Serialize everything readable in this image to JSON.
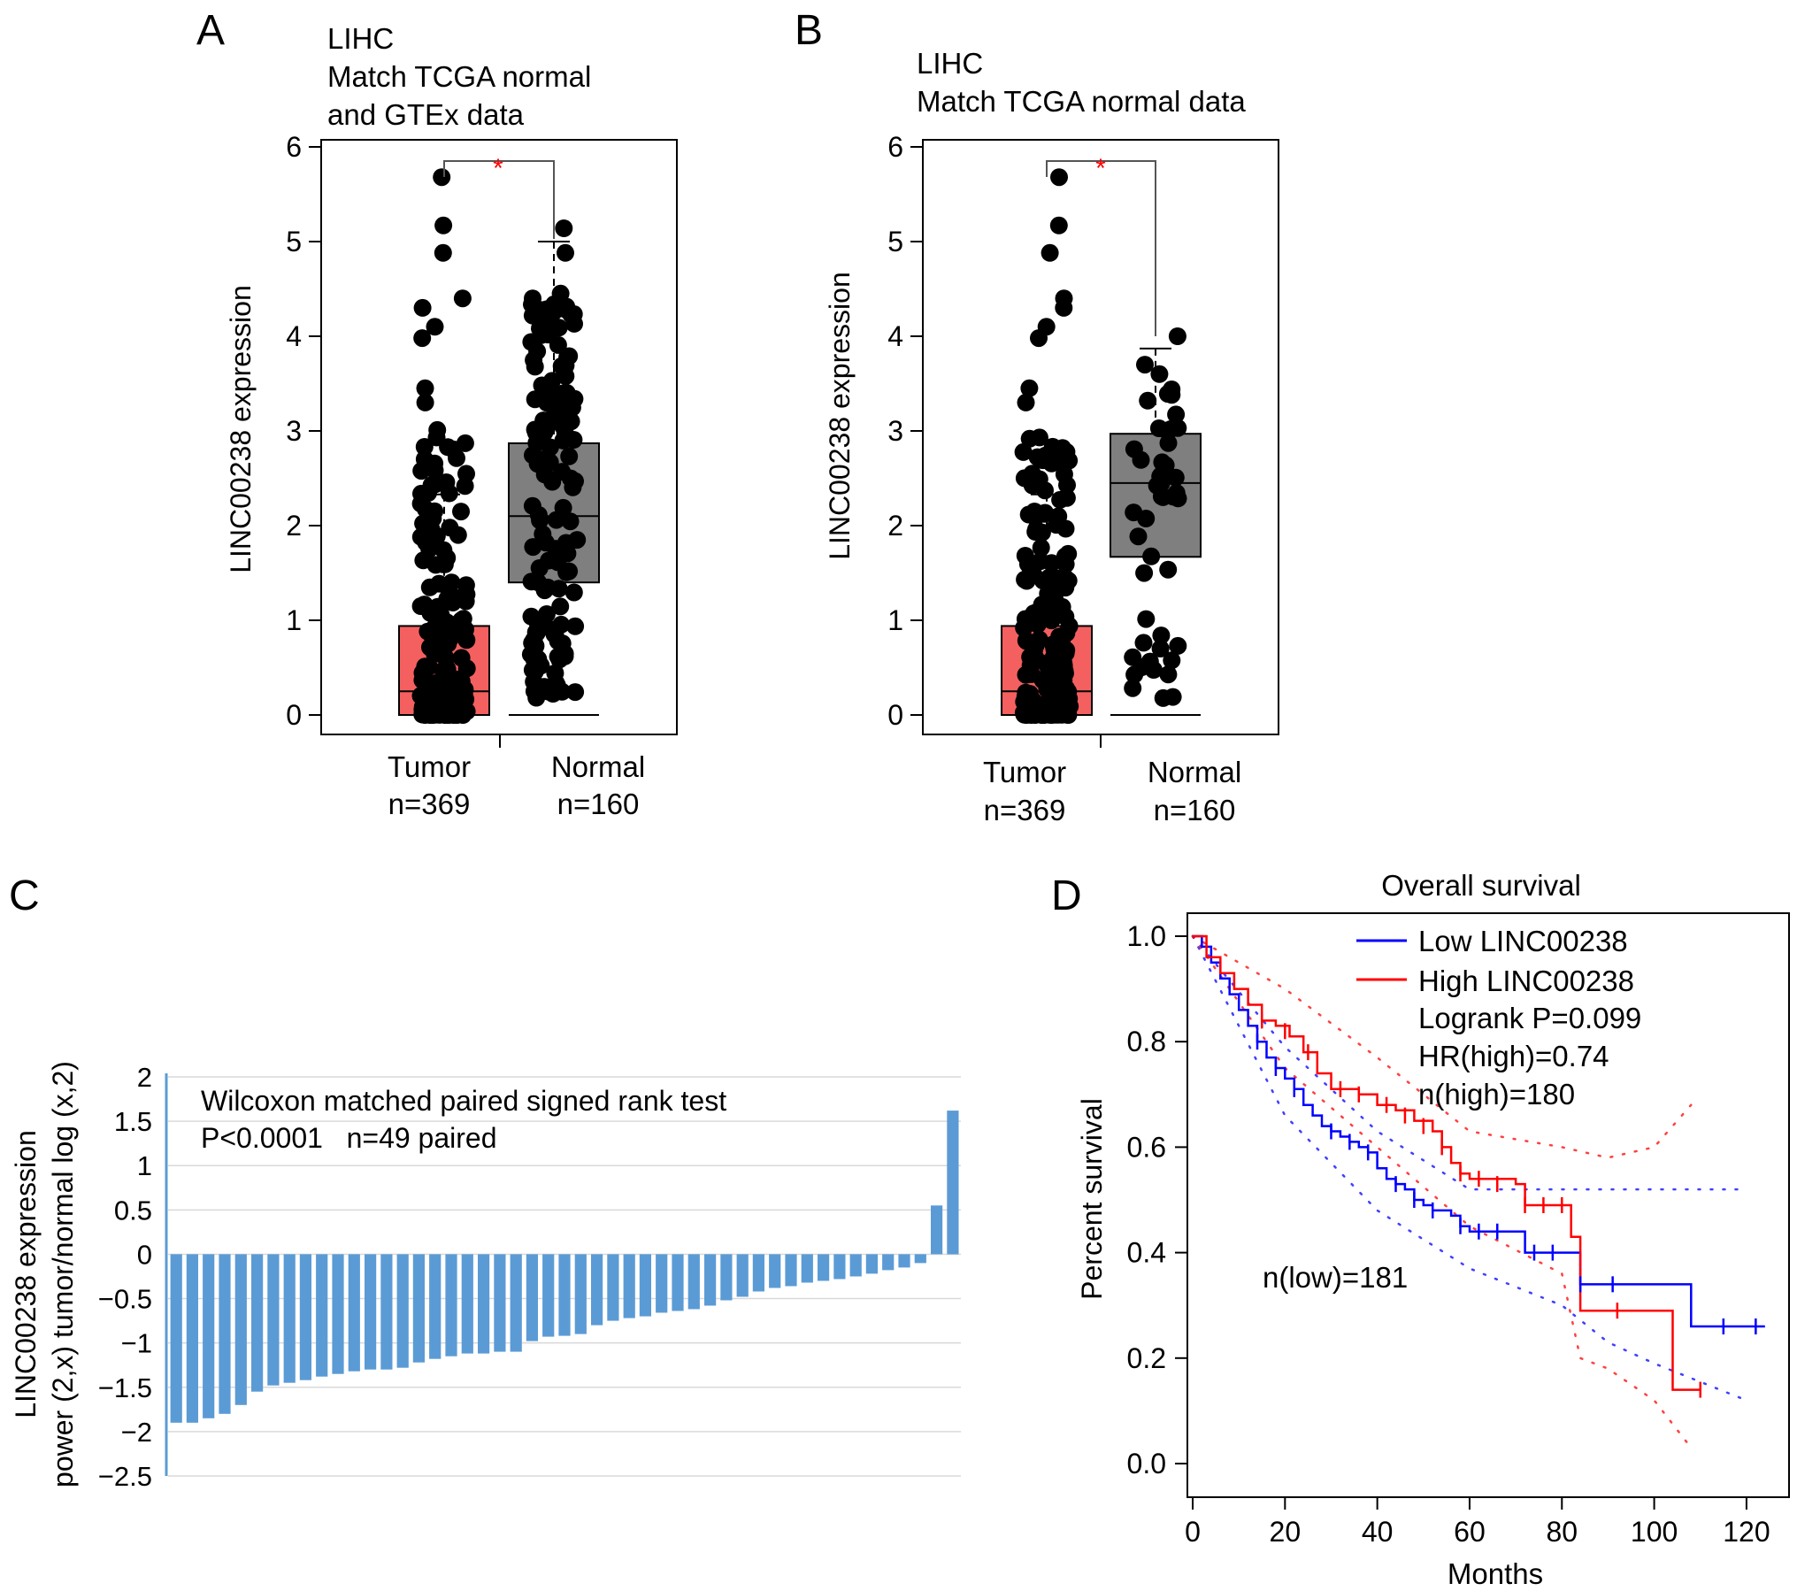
{
  "panel_labels": [
    "A",
    "B",
    "C",
    "D"
  ],
  "colors": {
    "tumor_box": "#f46060",
    "normal_box": "#7f7f7f",
    "points": "#000000",
    "significance_star": "#ff0000",
    "bars": "#5b9bd5",
    "km_low": "#0000ff",
    "km_high": "#ff0000"
  },
  "chart_data": [
    {
      "type": "boxplot",
      "panel": "A",
      "title_lines": [
        "LIHC",
        "Match TCGA normal",
        "and GTEx data"
      ],
      "ylabel": "LINC00238 expression",
      "ylim": [
        0,
        6
      ],
      "yticks": [
        "0",
        "1",
        "2",
        "3",
        "4",
        "5",
        "6"
      ],
      "significance": "*",
      "groups": [
        {
          "name": "Tumor",
          "n_label": "n=369",
          "color": "tumor_box",
          "q1": 0.0,
          "median": 0.25,
          "q3": 0.94,
          "whisker_low": 0.0,
          "whisker_high": 2.33,
          "point_max": 5.68,
          "point_count": 170,
          "point_outliers": [
            5.68,
            5.17,
            4.88,
            4.4,
            4.3,
            4.1,
            3.98,
            3.45,
            3.3
          ]
        },
        {
          "name": "Normal",
          "n_label": "n=160",
          "color": "normal_box",
          "q1": 1.4,
          "median": 2.1,
          "q3": 2.87,
          "whisker_low": 0.0,
          "whisker_high": 5.0,
          "point_max": 5.14,
          "point_count": 140,
          "point_outliers": [
            5.14,
            4.88,
            4.45,
            4.4,
            4.3
          ]
        }
      ]
    },
    {
      "type": "boxplot",
      "panel": "B",
      "title_lines": [
        "LIHC",
        "Match TCGA normal data"
      ],
      "ylabel": "LINC00238 expression",
      "ylim": [
        0,
        6
      ],
      "yticks": [
        "0",
        "1",
        "2",
        "3",
        "4",
        "5",
        "6"
      ],
      "significance": "*",
      "groups": [
        {
          "name": "Tumor",
          "n_label": "n=369",
          "color": "tumor_box",
          "q1": 0.0,
          "median": 0.25,
          "q3": 0.94,
          "whisker_low": 0.0,
          "whisker_high": 2.33,
          "point_max": 5.68,
          "point_count": 170,
          "point_outliers": [
            5.68,
            5.17,
            4.88,
            4.4,
            4.3,
            4.1,
            3.98,
            3.45,
            3.3
          ]
        },
        {
          "name": "Normal",
          "n_label": "n=160",
          "color": "normal_box",
          "q1": 1.67,
          "median": 2.45,
          "q3": 2.97,
          "whisker_low": 0.0,
          "whisker_high": 3.87,
          "point_max": 4.0,
          "point_count": 45,
          "point_outliers": [
            4.0,
            3.7,
            3.6
          ]
        }
      ]
    },
    {
      "type": "bar",
      "panel": "C",
      "ylabel_lines": [
        "LINC00238 expression",
        "power (2,x) tumor/normal log (x,2)"
      ],
      "ylim": [
        -2.5,
        2
      ],
      "yticks": [
        "2",
        "1.5",
        "1",
        "0.5",
        "0",
        "−0.5",
        "−1",
        "−1.5",
        "−2",
        "−2.5"
      ],
      "annotation_lines": [
        "Wilcoxon matched paired signed rank test",
        "P<0.0001   n=49 paired"
      ],
      "values": [
        -1.9,
        -1.9,
        -1.85,
        -1.8,
        -1.7,
        -1.55,
        -1.48,
        -1.45,
        -1.42,
        -1.38,
        -1.35,
        -1.32,
        -1.3,
        -1.3,
        -1.28,
        -1.22,
        -1.18,
        -1.15,
        -1.12,
        -1.12,
        -1.1,
        -1.1,
        -0.98,
        -0.93,
        -0.92,
        -0.9,
        -0.8,
        -0.75,
        -0.72,
        -0.7,
        -0.66,
        -0.64,
        -0.62,
        -0.58,
        -0.52,
        -0.48,
        -0.42,
        -0.38,
        -0.36,
        -0.32,
        -0.3,
        -0.28,
        -0.25,
        -0.22,
        -0.18,
        -0.15,
        -0.1,
        0.55,
        1.62
      ]
    },
    {
      "type": "line",
      "panel": "D",
      "title": "Overall survival",
      "xlabel": "Months",
      "ylabel": "Percent survival",
      "xlim": [
        0,
        125
      ],
      "ylim": [
        0,
        1.0
      ],
      "xticks": [
        "0",
        "20",
        "40",
        "60",
        "80",
        "100",
        "120"
      ],
      "yticks": [
        "0.0",
        "0.2",
        "0.4",
        "0.6",
        "0.8",
        "1.0"
      ],
      "legend_position": "top-center",
      "annotations": [
        "Logrank P=0.099",
        "HR(high)=0.74",
        "n(high)=180",
        "n(low)=181"
      ],
      "series": [
        {
          "name": "Low LINC00238",
          "color": "km_low",
          "points": [
            [
              0,
              1.0
            ],
            [
              2,
              0.98
            ],
            [
              4,
              0.95
            ],
            [
              6,
              0.92
            ],
            [
              8,
              0.89
            ],
            [
              10,
              0.86
            ],
            [
              12,
              0.83
            ],
            [
              14,
              0.8
            ],
            [
              16,
              0.77
            ],
            [
              18,
              0.75
            ],
            [
              20,
              0.73
            ],
            [
              22,
              0.71
            ],
            [
              24,
              0.68
            ],
            [
              26,
              0.66
            ],
            [
              28,
              0.64
            ],
            [
              30,
              0.63
            ],
            [
              32,
              0.62
            ],
            [
              34,
              0.61
            ],
            [
              36,
              0.6
            ],
            [
              38,
              0.59
            ],
            [
              40,
              0.56
            ],
            [
              42,
              0.54
            ],
            [
              44,
              0.53
            ],
            [
              46,
              0.52
            ],
            [
              48,
              0.5
            ],
            [
              50,
              0.49
            ],
            [
              52,
              0.48
            ],
            [
              56,
              0.47
            ],
            [
              58,
              0.45
            ],
            [
              60,
              0.44
            ],
            [
              70,
              0.44
            ],
            [
              72,
              0.4
            ],
            [
              80,
              0.4
            ],
            [
              84,
              0.34
            ],
            [
              90,
              0.34
            ],
            [
              108,
              0.34
            ],
            [
              108,
              0.26
            ],
            [
              124,
              0.26
            ]
          ],
          "censor": [
            [
              14,
              0.8
            ],
            [
              18,
              0.75
            ],
            [
              22,
              0.71
            ],
            [
              30,
              0.63
            ],
            [
              34,
              0.61
            ],
            [
              38,
              0.59
            ],
            [
              44,
              0.53
            ],
            [
              48,
              0.5
            ],
            [
              52,
              0.48
            ],
            [
              58,
              0.45
            ],
            [
              62,
              0.44
            ],
            [
              66,
              0.44
            ],
            [
              74,
              0.4
            ],
            [
              78,
              0.4
            ],
            [
              84,
              0.34
            ],
            [
              91,
              0.34
            ],
            [
              115,
              0.26
            ],
            [
              122,
              0.26
            ]
          ],
          "ci_upper": [
            [
              0,
              1.0
            ],
            [
              20,
              0.79
            ],
            [
              40,
              0.63
            ],
            [
              60,
              0.52
            ],
            [
              80,
              0.52
            ],
            [
              100,
              0.52
            ],
            [
              120,
              0.52
            ]
          ],
          "ci_lower": [
            [
              0,
              1.0
            ],
            [
              20,
              0.66
            ],
            [
              40,
              0.48
            ],
            [
              60,
              0.37
            ],
            [
              80,
              0.3
            ],
            [
              90,
              0.23
            ],
            [
              100,
              0.19
            ],
            [
              120,
              0.12
            ]
          ]
        },
        {
          "name": "High LINC00238",
          "color": "km_high",
          "points": [
            [
              0,
              1.0
            ],
            [
              3,
              0.96
            ],
            [
              6,
              0.93
            ],
            [
              9,
              0.9
            ],
            [
              12,
              0.87
            ],
            [
              15,
              0.84
            ],
            [
              18,
              0.83
            ],
            [
              21,
              0.81
            ],
            [
              24,
              0.78
            ],
            [
              27,
              0.74
            ],
            [
              30,
              0.71
            ],
            [
              36,
              0.7
            ],
            [
              40,
              0.68
            ],
            [
              44,
              0.67
            ],
            [
              48,
              0.65
            ],
            [
              52,
              0.63
            ],
            [
              54,
              0.6
            ],
            [
              56,
              0.57
            ],
            [
              58,
              0.55
            ],
            [
              60,
              0.54
            ],
            [
              70,
              0.53
            ],
            [
              72,
              0.49
            ],
            [
              80,
              0.49
            ],
            [
              82,
              0.43
            ],
            [
              84,
              0.29
            ],
            [
              104,
              0.29
            ],
            [
              104,
              0.14
            ],
            [
              110,
              0.14
            ]
          ],
          "censor": [
            [
              15,
              0.84
            ],
            [
              20,
              0.82
            ],
            [
              25,
              0.78
            ],
            [
              32,
              0.71
            ],
            [
              36,
              0.7
            ],
            [
              42,
              0.68
            ],
            [
              46,
              0.66
            ],
            [
              50,
              0.64
            ],
            [
              54,
              0.6
            ],
            [
              58,
              0.55
            ],
            [
              62,
              0.54
            ],
            [
              66,
              0.53
            ],
            [
              72,
              0.49
            ],
            [
              76,
              0.49
            ],
            [
              80,
              0.49
            ],
            [
              92,
              0.29
            ],
            [
              110,
              0.14
            ]
          ],
          "ci_upper": [
            [
              0,
              1.0
            ],
            [
              20,
              0.9
            ],
            [
              40,
              0.77
            ],
            [
              60,
              0.63
            ],
            [
              80,
              0.6
            ],
            [
              90,
              0.58
            ],
            [
              100,
              0.6
            ],
            [
              108,
              0.68
            ]
          ],
          "ci_lower": [
            [
              0,
              1.0
            ],
            [
              20,
              0.75
            ],
            [
              40,
              0.6
            ],
            [
              60,
              0.45
            ],
            [
              80,
              0.36
            ],
            [
              84,
              0.2
            ],
            [
              90,
              0.18
            ],
            [
              100,
              0.12
            ],
            [
              108,
              0.03
            ]
          ]
        }
      ]
    }
  ]
}
